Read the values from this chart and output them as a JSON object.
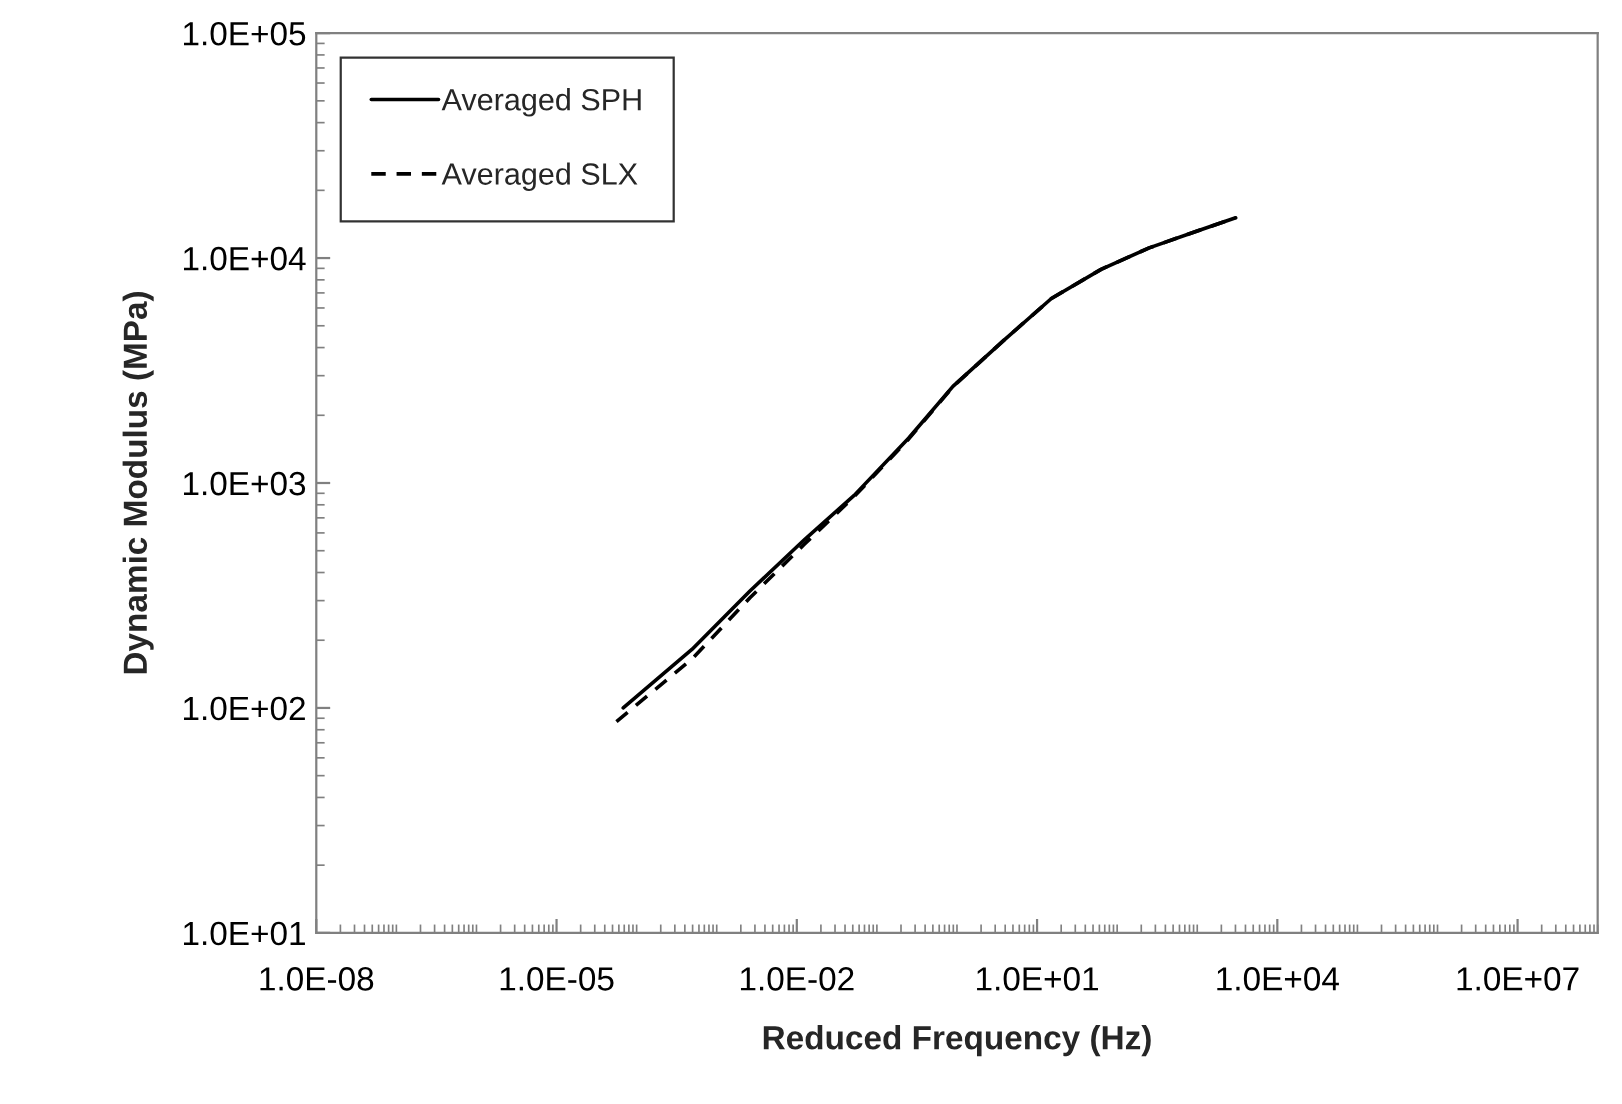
{
  "chart_data": {
    "type": "line",
    "xlabel": "Reduced Frequency (Hz)",
    "ylabel": "Dynamic Modulus (MPa)",
    "log": "xy",
    "xlim": [
      1e-08,
      100000000.0
    ],
    "ylim": [
      10,
      100000
    ],
    "xticks": [
      {
        "value": 1e-08,
        "label": "1.0E-08"
      },
      {
        "value": 1e-05,
        "label": "1.0E-05"
      },
      {
        "value": 0.01,
        "label": "1.0E-02"
      },
      {
        "value": 10,
        "label": "1.0E+01"
      },
      {
        "value": 10000,
        "label": "1.0E+04"
      },
      {
        "value": 10000000.0,
        "label": "1.0E+07"
      }
    ],
    "yticks": [
      {
        "value": 10,
        "label": "1.0E+01"
      },
      {
        "value": 100,
        "label": "1.0E+02"
      },
      {
        "value": 1000,
        "label": "1.0E+03"
      },
      {
        "value": 10000,
        "label": "1.0E+04"
      },
      {
        "value": 100000,
        "label": "1.0E+05"
      }
    ],
    "grid": false,
    "legend": "top left",
    "marker": "none",
    "series": [
      {
        "name": "Averaged SPH",
        "color": "#000000",
        "line_style": "solid",
        "x": [
          6.8e-05,
          0.00049,
          0.0026,
          0.0126,
          0.052,
          0.25,
          0.89,
          4.0,
          15.1,
          63,
          251,
          1000,
          3020
        ],
        "values": [
          100,
          182,
          331,
          562,
          881,
          1585,
          2690,
          4365,
          6610,
          8910,
          11100,
          13200,
          15100
        ]
      },
      {
        "name": "Averaged SLX",
        "color": "#000000",
        "line_style": "dashed",
        "x": [
          5.6e-05,
          0.0005,
          0.0026,
          0.0126,
          0.052,
          0.25,
          0.89,
          4.0,
          15.1,
          63,
          251,
          1000,
          3020
        ],
        "values": [
          87,
          166,
          309,
          537,
          870,
          1570,
          2680,
          4365,
          6610,
          8910,
          11100,
          13200,
          15100
        ]
      }
    ]
  }
}
